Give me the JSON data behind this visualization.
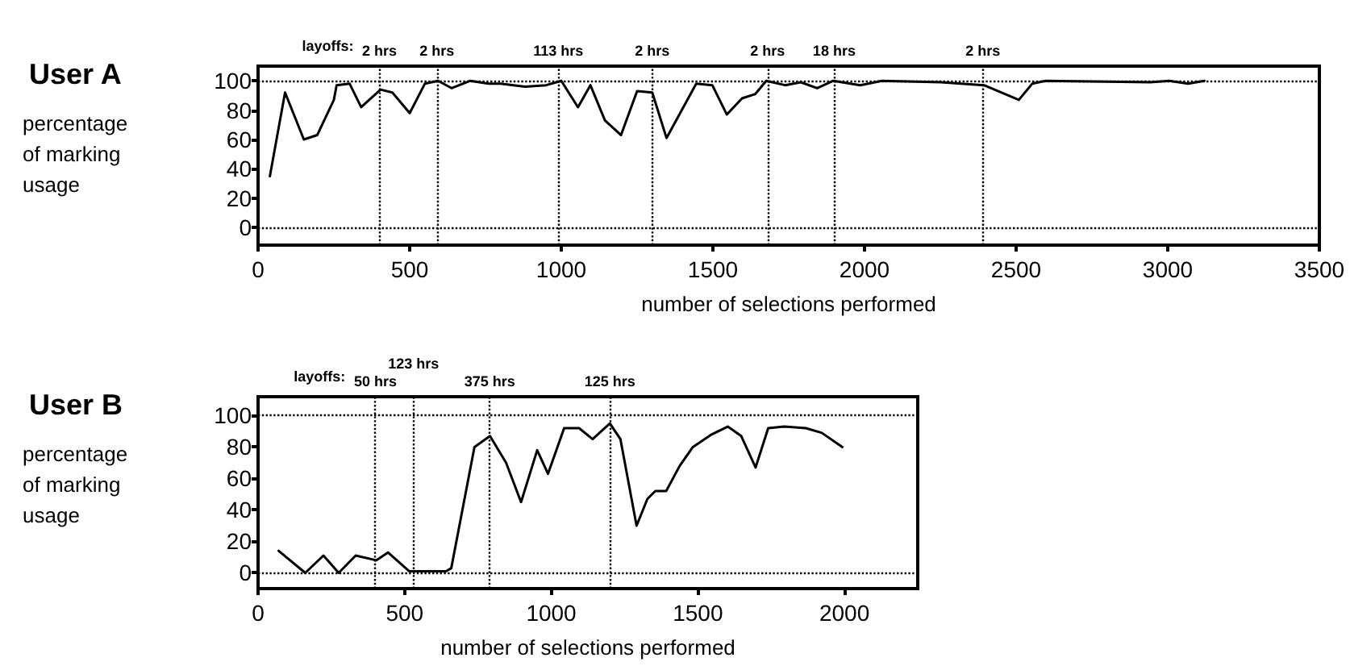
{
  "chart_data": [
    {
      "type": "line",
      "title": "User A",
      "xlabel": "number of selections performed",
      "ylabel": "percentage of marking usage",
      "marker": "none",
      "line_style": "solid",
      "grid": false,
      "xlim": [
        0,
        3500
      ],
      "xticks": [
        0,
        500,
        1000,
        1500,
        2000,
        2500,
        3000,
        3500
      ],
      "ylim": [
        -12,
        110
      ],
      "yticks": [
        0,
        20,
        40,
        60,
        80,
        100
      ],
      "x": [
        39,
        89,
        151,
        195,
        250,
        259,
        302,
        340,
        404,
        443,
        500,
        550,
        594,
        638,
        700,
        760,
        800,
        880,
        950,
        1000,
        1055,
        1096,
        1144,
        1197,
        1250,
        1300,
        1347,
        1445,
        1498,
        1546,
        1596,
        1640,
        1676,
        1738,
        1790,
        1844,
        1897,
        1986,
        2057,
        2252,
        2394,
        2509,
        2553,
        2597,
        2943,
        3005,
        3067,
        3121
      ],
      "series": [
        {
          "color": "#000000",
          "values": [
            35,
            92,
            60,
            63,
            87,
            97,
            98,
            82,
            94,
            92,
            78,
            98,
            100,
            95,
            100,
            98,
            98,
            96,
            97,
            100,
            82,
            97,
            73,
            63,
            93,
            92,
            61,
            98,
            97,
            77,
            88,
            91,
            100,
            97,
            99,
            95,
            100,
            97,
            100,
            99,
            97,
            87,
            98,
            100,
            99,
            100,
            98,
            100
          ]
        }
      ],
      "ref_lines": [
        {
          "axis": "y",
          "value": 100,
          "line_style": "dotted"
        },
        {
          "axis": "y",
          "value": 0,
          "line_style": "dotted"
        },
        {
          "axis": "x",
          "value": 400,
          "label": "2 hrs",
          "line_style": "dotted"
        },
        {
          "axis": "x",
          "value": 590,
          "label": "2 hrs",
          "line_style": "dotted"
        },
        {
          "axis": "x",
          "value": 990,
          "label": "113 hrs",
          "line_style": "dotted"
        },
        {
          "axis": "x",
          "value": 1300,
          "label": "2 hrs",
          "line_style": "dotted"
        },
        {
          "axis": "x",
          "value": 1680,
          "label": "2 hrs",
          "line_style": "dotted"
        },
        {
          "axis": "x",
          "value": 1900,
          "label": "18 hrs",
          "line_style": "dotted"
        },
        {
          "axis": "x",
          "value": 2390,
          "label": "2 hrs",
          "line_style": "dotted"
        }
      ],
      "annotations": [
        "layoffs:"
      ]
    },
    {
      "type": "line",
      "title": "User B",
      "xlabel": "number of selections performed",
      "ylabel": "percentage of marking usage",
      "marker": "none",
      "line_style": "solid",
      "grid": false,
      "xlim": [
        0,
        2250
      ],
      "xticks": [
        0,
        500,
        1000,
        1500,
        2000
      ],
      "ylim": [
        -10,
        112
      ],
      "yticks": [
        0,
        20,
        40,
        60,
        80,
        100
      ],
      "x": [
        70,
        161,
        223,
        275,
        333,
        403,
        443,
        516,
        641,
        659,
        738,
        791,
        846,
        897,
        952,
        989,
        1044,
        1095,
        1141,
        1200,
        1236,
        1291,
        1328,
        1355,
        1392,
        1438,
        1483,
        1547,
        1602,
        1648,
        1697,
        1740,
        1795,
        1868,
        1923,
        1993
      ],
      "series": [
        {
          "color": "#000000",
          "values": [
            14,
            0,
            11,
            0,
            11,
            8,
            13,
            1,
            1,
            3,
            80,
            87,
            70,
            45,
            78,
            63,
            92,
            92,
            85,
            95,
            85,
            30,
            47,
            52,
            52,
            68,
            80,
            88,
            93,
            87,
            67,
            92,
            93,
            92,
            89,
            80
          ]
        }
      ],
      "ref_lines": [
        {
          "axis": "y",
          "value": 100,
          "line_style": "dotted"
        },
        {
          "axis": "y",
          "value": 0,
          "line_style": "dotted"
        },
        {
          "axis": "x",
          "value": 400,
          "label": "50 hrs",
          "line_style": "dotted"
        },
        {
          "axis": "x",
          "value": 530,
          "label": "123 hrs",
          "line_style": "dotted"
        },
        {
          "axis": "x",
          "value": 790,
          "label": "375 hrs",
          "line_style": "dotted"
        },
        {
          "axis": "x",
          "value": 1200,
          "label": "125 hrs",
          "line_style": "dotted"
        }
      ],
      "annotations": [
        "layoffs:"
      ]
    }
  ]
}
